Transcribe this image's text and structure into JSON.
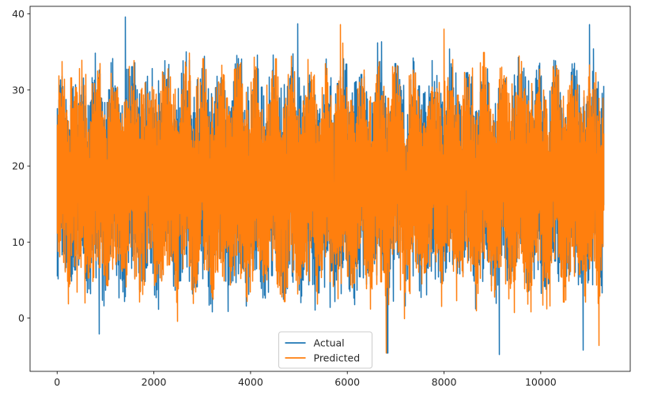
{
  "chart_data": {
    "type": "line",
    "title": "",
    "xlabel": "",
    "ylabel": "",
    "xlim": [
      -560,
      11850
    ],
    "ylim": [
      -7,
      41
    ],
    "xticks": [
      0,
      2000,
      4000,
      6000,
      8000,
      10000
    ],
    "yticks": [
      0,
      10,
      20,
      30,
      40
    ],
    "n_points": 11300,
    "grid": false,
    "legend": {
      "placement": "bottom-center"
    },
    "series": [
      {
        "name": "Actual",
        "color": "#1f77b4",
        "summary": {
          "min": -4.8,
          "max": 39.6,
          "typical_low": 5,
          "typical_high": 33,
          "center": 18
        },
        "extremes": [
          {
            "x": 870,
            "y": -2.1
          },
          {
            "x": 1410,
            "y": 39.6
          },
          {
            "x": 4980,
            "y": 38.7
          },
          {
            "x": 6830,
            "y": -4.6
          },
          {
            "x": 9150,
            "y": -4.8
          },
          {
            "x": 11000,
            "y": 38.6
          },
          {
            "x": 10880,
            "y": -4.2
          }
        ]
      },
      {
        "name": "Predicted",
        "color": "#ff7f0e",
        "summary": {
          "min": -4.6,
          "max": 38.0,
          "typical_low": 5,
          "typical_high": 33,
          "center": 18
        },
        "extremes": [
          {
            "x": 5860,
            "y": 38.6
          },
          {
            "x": 6810,
            "y": -4.6
          },
          {
            "x": 11200,
            "y": -3.6
          },
          {
            "x": 8000,
            "y": 38.0
          }
        ]
      }
    ]
  }
}
